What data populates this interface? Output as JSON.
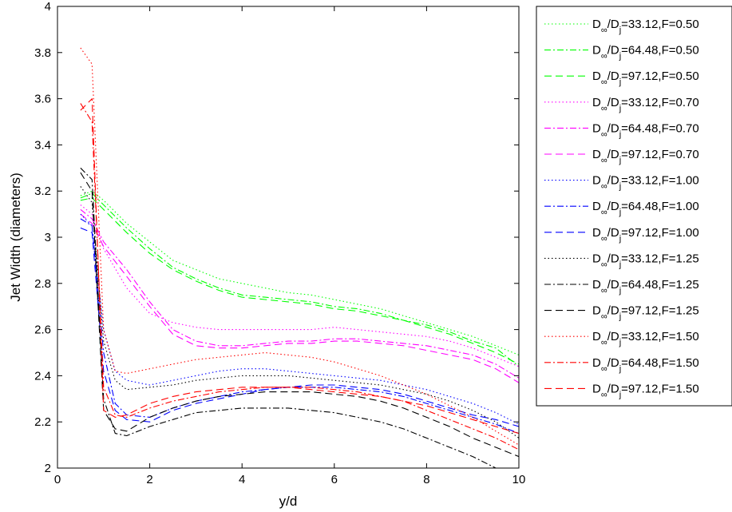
{
  "chart_data": {
    "type": "line",
    "title": "",
    "xlabel": "y/d",
    "ylabel": "Jet Width (diameters)",
    "xlim": [
      0,
      10
    ],
    "ylim": [
      2,
      4
    ],
    "xticks": [
      0,
      2,
      4,
      6,
      8,
      10
    ],
    "yticks": [
      2,
      2.2,
      2.4,
      2.6,
      2.8,
      3,
      3.2,
      3.4,
      3.6,
      3.8,
      4
    ],
    "grid": false,
    "legend_position": "outside-right",
    "series": [
      {
        "name": "D∞/Dj=33.12,F=0.50",
        "legend": {
          "pre": "D",
          "sub1": "∞",
          "mid": "/D",
          "sub2": "j",
          "post": "=33.12,F=0.50"
        },
        "color": "#00ff00",
        "dash": "dotted",
        "x": [
          0.5,
          0.75,
          1,
          1.5,
          2,
          2.5,
          3,
          3.5,
          4,
          4.5,
          5,
          5.5,
          6,
          6.5,
          7,
          7.5,
          8,
          8.5,
          9,
          9.5,
          10
        ],
        "y": [
          3.18,
          3.2,
          3.16,
          3.06,
          2.98,
          2.9,
          2.86,
          2.82,
          2.8,
          2.78,
          2.76,
          2.75,
          2.73,
          2.71,
          2.69,
          2.66,
          2.63,
          2.6,
          2.57,
          2.53,
          2.49
        ]
      },
      {
        "name": "D∞/Dj=64.48,F=0.50",
        "legend": {
          "pre": "D",
          "sub1": "∞",
          "mid": "/D",
          "sub2": "j",
          "post": "=64.48,F=0.50"
        },
        "color": "#00ff00",
        "dash": "dashdot",
        "x": [
          0.5,
          0.75,
          1,
          1.5,
          2,
          2.5,
          3,
          3.5,
          4,
          4.5,
          5,
          5.5,
          6,
          6.5,
          7,
          7.5,
          8,
          8.5,
          9,
          9.5,
          10
        ],
        "y": [
          3.17,
          3.19,
          3.14,
          3.04,
          2.95,
          2.87,
          2.82,
          2.78,
          2.75,
          2.74,
          2.73,
          2.72,
          2.7,
          2.69,
          2.67,
          2.64,
          2.62,
          2.59,
          2.55,
          2.52,
          2.44
        ]
      },
      {
        "name": "D∞/Dj=97.12,F=0.50",
        "legend": {
          "pre": "D",
          "sub1": "∞",
          "mid": "/D",
          "sub2": "j",
          "post": "=97.12,F=0.50"
        },
        "color": "#00ff00",
        "dash": "dashed",
        "x": [
          0.5,
          0.75,
          1,
          1.5,
          2,
          2.5,
          3,
          3.5,
          4,
          4.5,
          5,
          5.5,
          6,
          6.5,
          7,
          7.5,
          8,
          8.5,
          9,
          9.5,
          10
        ],
        "y": [
          3.16,
          3.17,
          3.12,
          3.02,
          2.93,
          2.86,
          2.81,
          2.77,
          2.74,
          2.73,
          2.72,
          2.71,
          2.69,
          2.68,
          2.66,
          2.64,
          2.61,
          2.58,
          2.54,
          2.5,
          2.45
        ]
      },
      {
        "name": "D∞/Dj=33.12,F=0.70",
        "legend": {
          "pre": "D",
          "sub1": "∞",
          "mid": "/D",
          "sub2": "j",
          "post": "=33.12,F=0.70"
        },
        "color": "#ff00ff",
        "dash": "dotted",
        "x": [
          0.5,
          0.75,
          1,
          1.5,
          2,
          2.5,
          3,
          3.5,
          4,
          4.5,
          5,
          5.5,
          6,
          6.5,
          7,
          7.5,
          8,
          8.5,
          9,
          9.5,
          10
        ],
        "y": [
          3.14,
          3.1,
          2.95,
          2.78,
          2.67,
          2.63,
          2.61,
          2.6,
          2.6,
          2.6,
          2.6,
          2.6,
          2.61,
          2.6,
          2.59,
          2.58,
          2.57,
          2.55,
          2.52,
          2.48,
          2.44
        ]
      },
      {
        "name": "D∞/Dj=64.48,F=0.70",
        "legend": {
          "pre": "D",
          "sub1": "∞",
          "mid": "/D",
          "sub2": "j",
          "post": "=64.48,F=0.70"
        },
        "color": "#ff00ff",
        "dash": "dashdot",
        "x": [
          0.5,
          0.75,
          1,
          1.5,
          2,
          2.5,
          3,
          3.5,
          4,
          4.5,
          5,
          5.5,
          6,
          6.5,
          7,
          7.5,
          8,
          8.5,
          9,
          9.5,
          10
        ],
        "y": [
          3.12,
          3.08,
          2.98,
          2.86,
          2.72,
          2.6,
          2.55,
          2.53,
          2.53,
          2.54,
          2.55,
          2.55,
          2.56,
          2.56,
          2.55,
          2.54,
          2.53,
          2.51,
          2.49,
          2.45,
          2.39
        ]
      },
      {
        "name": "D∞/Dj=97.12,F=0.70",
        "legend": {
          "pre": "D",
          "sub1": "∞",
          "mid": "/D",
          "sub2": "j",
          "post": "=97.12,F=0.70"
        },
        "color": "#ff00ff",
        "dash": "dashed",
        "x": [
          0.5,
          0.75,
          1,
          1.5,
          2,
          2.5,
          3,
          3.5,
          4,
          4.5,
          5,
          5.5,
          6,
          6.5,
          7,
          7.5,
          8,
          8.5,
          9,
          9.5,
          10
        ],
        "y": [
          3.1,
          3.06,
          2.96,
          2.83,
          2.7,
          2.58,
          2.53,
          2.52,
          2.52,
          2.53,
          2.54,
          2.54,
          2.55,
          2.55,
          2.54,
          2.53,
          2.51,
          2.49,
          2.47,
          2.43,
          2.37
        ]
      },
      {
        "name": "D∞/Dj=33.12,F=1.00",
        "legend": {
          "pre": "D",
          "sub1": "∞",
          "mid": "/D",
          "sub2": "j",
          "post": "=33.12,F=1.00"
        },
        "color": "#0000ff",
        "dash": "dotted",
        "x": [
          0.5,
          0.75,
          1,
          1.25,
          1.5,
          2,
          2.5,
          3,
          3.5,
          4,
          4.5,
          5,
          5.5,
          6,
          6.5,
          7,
          7.5,
          8,
          8.5,
          9,
          9.5,
          10
        ],
        "y": [
          3.1,
          3.05,
          2.6,
          2.42,
          2.38,
          2.36,
          2.38,
          2.4,
          2.42,
          2.43,
          2.43,
          2.42,
          2.41,
          2.4,
          2.39,
          2.38,
          2.36,
          2.34,
          2.31,
          2.28,
          2.24,
          2.19
        ]
      },
      {
        "name": "D∞/Dj=64.48,F=1.00",
        "legend": {
          "pre": "D",
          "sub1": "∞",
          "mid": "/D",
          "sub2": "j",
          "post": "=64.48,F=1.00"
        },
        "color": "#0000ff",
        "dash": "dashdot",
        "x": [
          0.5,
          0.75,
          1,
          1.25,
          1.5,
          2,
          2.5,
          3,
          3.5,
          4,
          4.5,
          5,
          5.5,
          6,
          6.5,
          7,
          7.5,
          8,
          8.5,
          9,
          9.5,
          10
        ],
        "y": [
          3.08,
          3.05,
          2.5,
          2.28,
          2.23,
          2.22,
          2.26,
          2.29,
          2.31,
          2.33,
          2.34,
          2.35,
          2.35,
          2.35,
          2.34,
          2.33,
          2.31,
          2.28,
          2.25,
          2.22,
          2.19,
          2.15
        ]
      },
      {
        "name": "D∞/Dj=97.12,F=1.00",
        "legend": {
          "pre": "D",
          "sub1": "∞",
          "mid": "/D",
          "sub2": "j",
          "post": "=97.12,F=1.00"
        },
        "color": "#0000ff",
        "dash": "dashed",
        "x": [
          0.5,
          0.75,
          1,
          1.25,
          1.5,
          2,
          2.5,
          3,
          3.5,
          4,
          4.5,
          5,
          5.5,
          6,
          6.5,
          7,
          7.5,
          8,
          8.5,
          9,
          9.5,
          10
        ],
        "y": [
          3.04,
          3.02,
          2.42,
          2.25,
          2.21,
          2.2,
          2.25,
          2.28,
          2.3,
          2.32,
          2.34,
          2.35,
          2.36,
          2.36,
          2.35,
          2.34,
          2.32,
          2.29,
          2.26,
          2.23,
          2.21,
          2.18
        ]
      },
      {
        "name": "D∞/Dj=33.12,F=1.25",
        "legend": {
          "pre": "D",
          "sub1": "∞",
          "mid": "/D",
          "sub2": "j",
          "post": "=33.12,F=1.25"
        },
        "color": "#000000",
        "dash": "dotted",
        "x": [
          0.5,
          0.75,
          1,
          1.25,
          1.5,
          2,
          2.5,
          3,
          3.5,
          4,
          4.5,
          5,
          5.5,
          6,
          6.5,
          7,
          7.5,
          8,
          8.5,
          9,
          9.5,
          10
        ],
        "y": [
          3.22,
          3.15,
          2.55,
          2.38,
          2.34,
          2.35,
          2.36,
          2.38,
          2.39,
          2.4,
          2.4,
          2.4,
          2.39,
          2.38,
          2.37,
          2.36,
          2.34,
          2.32,
          2.29,
          2.25,
          2.2,
          2.13
        ]
      },
      {
        "name": "D∞/Dj=64.48,F=1.25",
        "legend": {
          "pre": "D",
          "sub1": "∞",
          "mid": "/D",
          "sub2": "j",
          "post": "=64.48,F=1.25"
        },
        "color": "#000000",
        "dash": "dashdot",
        "x": [
          0.5,
          0.75,
          1,
          1.25,
          1.5,
          2,
          2.5,
          3,
          3.5,
          4,
          4.5,
          5,
          5.5,
          6,
          6.5,
          7,
          7.5,
          8,
          8.5,
          9,
          9.5,
          10
        ],
        "y": [
          3.3,
          3.25,
          2.3,
          2.15,
          2.14,
          2.18,
          2.21,
          2.24,
          2.25,
          2.26,
          2.26,
          2.26,
          2.25,
          2.24,
          2.22,
          2.2,
          2.17,
          2.13,
          2.09,
          2.05,
          2.0,
          1.98
        ]
      },
      {
        "name": "D∞/Dj=97.12,F=1.25",
        "legend": {
          "pre": "D",
          "sub1": "∞",
          "mid": "/D",
          "sub2": "j",
          "post": "=97.12,F=1.25"
        },
        "color": "#000000",
        "dash": "dashed",
        "x": [
          0.5,
          0.75,
          1,
          1.25,
          1.5,
          2,
          2.5,
          3,
          3.5,
          4,
          4.5,
          5,
          5.5,
          6,
          6.5,
          7,
          7.5,
          8,
          8.5,
          9,
          9.5,
          10
        ],
        "y": [
          3.28,
          3.2,
          2.25,
          2.17,
          2.16,
          2.22,
          2.26,
          2.29,
          2.31,
          2.32,
          2.33,
          2.33,
          2.33,
          2.32,
          2.31,
          2.29,
          2.26,
          2.22,
          2.18,
          2.13,
          2.09,
          2.05
        ]
      },
      {
        "name": "D∞/Dj=33.12,F=1.50",
        "legend": {
          "pre": "D",
          "sub1": "∞",
          "mid": "/D",
          "sub2": "j",
          "post": "=33.12,F=1.50"
        },
        "color": "#ff0000",
        "dash": "dotted",
        "x": [
          0.5,
          0.75,
          1,
          1.25,
          1.5,
          2,
          2.5,
          3,
          3.5,
          4,
          4.5,
          5,
          5.5,
          6,
          6.5,
          7,
          7.5,
          8,
          8.5,
          9,
          9.5,
          10
        ],
        "y": [
          3.82,
          3.75,
          2.6,
          2.42,
          2.41,
          2.43,
          2.45,
          2.47,
          2.48,
          2.49,
          2.5,
          2.49,
          2.48,
          2.46,
          2.43,
          2.4,
          2.36,
          2.32,
          2.27,
          2.22,
          2.16,
          2.1
        ]
      },
      {
        "name": "D∞/Dj=64.48,F=1.50",
        "legend": {
          "pre": "D",
          "sub1": "∞",
          "mid": "/D",
          "sub2": "j",
          "post": "=64.48,F=1.50"
        },
        "color": "#ff0000",
        "dash": "dashdot",
        "x": [
          0.5,
          0.75,
          1,
          1.25,
          1.5,
          2,
          2.5,
          3,
          3.5,
          4,
          4.5,
          5,
          5.5,
          6,
          6.5,
          7,
          7.5,
          8,
          8.5,
          9,
          9.5,
          10
        ],
        "y": [
          3.58,
          3.5,
          2.35,
          2.23,
          2.22,
          2.26,
          2.29,
          2.31,
          2.33,
          2.34,
          2.35,
          2.35,
          2.35,
          2.34,
          2.33,
          2.31,
          2.29,
          2.25,
          2.21,
          2.17,
          2.13,
          2.08
        ]
      },
      {
        "name": "D∞/Dj=97.12,F=1.50",
        "legend": {
          "pre": "D",
          "sub1": "∞",
          "mid": "/D",
          "sub2": "j",
          "post": "=97.12,F=1.50"
        },
        "color": "#ff0000",
        "dash": "dashed",
        "x": [
          0.5,
          0.75,
          1,
          1.25,
          1.5,
          2,
          2.5,
          3,
          3.5,
          4,
          4.5,
          5,
          5.5,
          6,
          6.5,
          7,
          7.5,
          8,
          8.5,
          9,
          9.5,
          10
        ],
        "y": [
          3.55,
          3.6,
          2.25,
          2.22,
          2.23,
          2.28,
          2.31,
          2.33,
          2.34,
          2.35,
          2.35,
          2.35,
          2.34,
          2.33,
          2.32,
          2.31,
          2.29,
          2.27,
          2.24,
          2.21,
          2.18,
          2.15
        ]
      }
    ]
  }
}
